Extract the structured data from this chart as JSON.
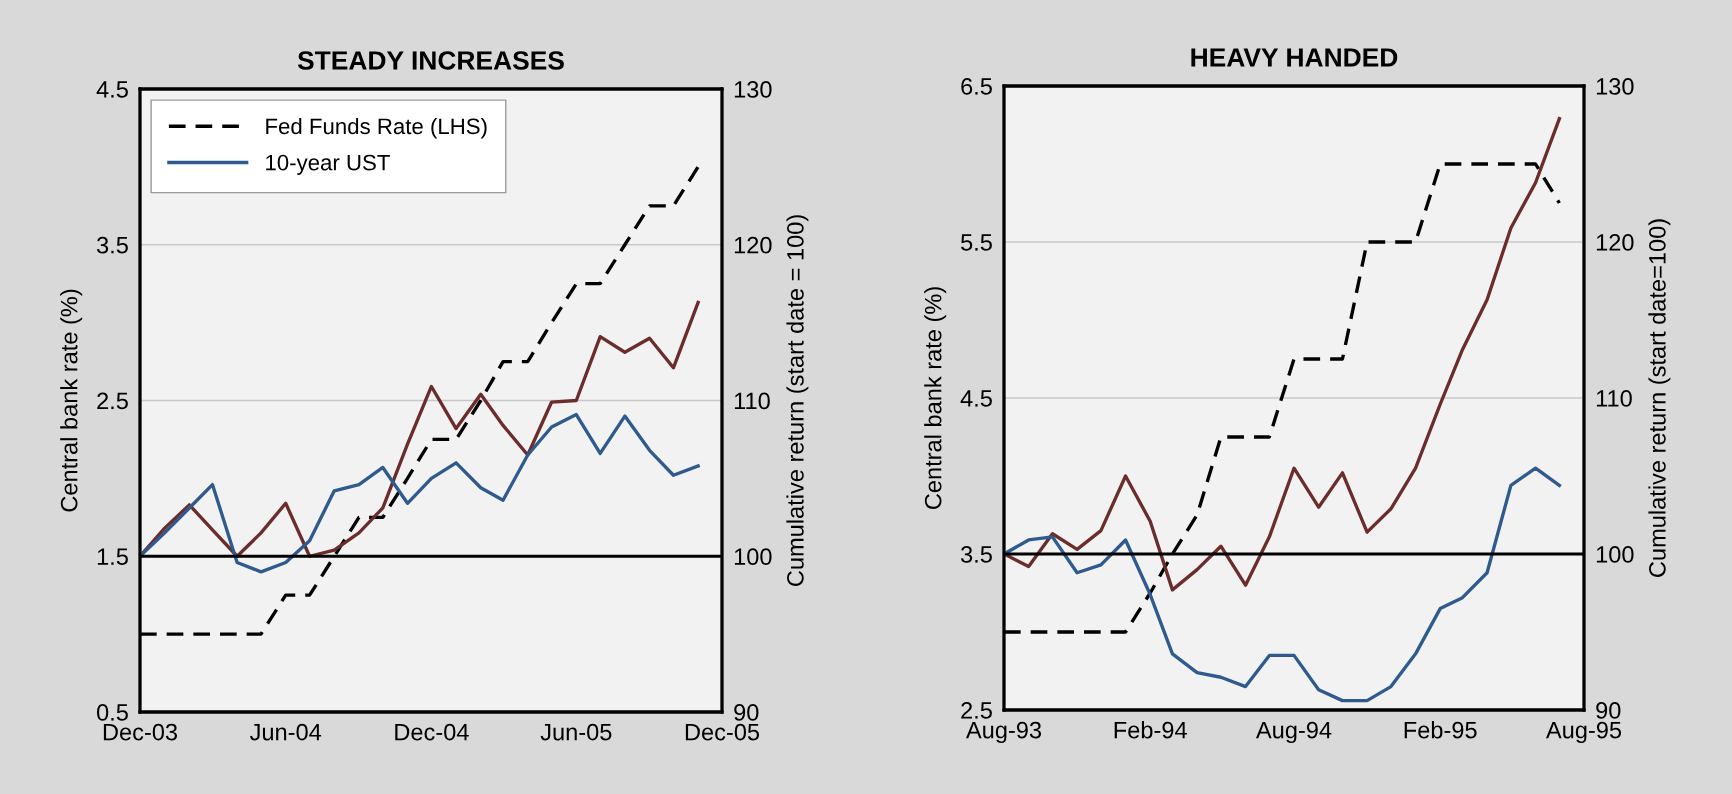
{
  "chart_data": [
    {
      "type": "line",
      "title": "STEADY INCREASES",
      "ylabel": "Central bank rate (%)",
      "y2label": "Cumulative return (start date = 100)",
      "x": [
        "2003-12",
        "2004-01",
        "2004-02",
        "2004-03",
        "2004-04",
        "2004-05",
        "2004-06",
        "2004-07",
        "2004-08",
        "2004-09",
        "2004-10",
        "2004-11",
        "2004-12",
        "2005-01",
        "2005-02",
        "2005-03",
        "2005-04",
        "2005-05",
        "2005-06",
        "2005-07",
        "2005-08",
        "2005-09",
        "2005-10",
        "2005-11"
      ],
      "xlim": [
        "2003-12",
        "2005-12"
      ],
      "xticks": [
        {
          "value": "2003-12",
          "label": "Dec-03"
        },
        {
          "value": "2004-06",
          "label": "Jun-04"
        },
        {
          "value": "2004-12",
          "label": "Dec-04"
        },
        {
          "value": "2005-06",
          "label": "Jun-05"
        },
        {
          "value": "2005-12",
          "label": "Dec-05"
        }
      ],
      "ylim": [
        0.5,
        4.5
      ],
      "yticks": [
        0.5,
        1.5,
        2.5,
        3.5,
        4.5
      ],
      "y2lim": [
        90,
        130
      ],
      "y2ticks": [
        90,
        100,
        110,
        120,
        130
      ],
      "grid": "y",
      "legend": "top left",
      "ref_lines": [
        {
          "axis": "y2",
          "value": 100,
          "color": "#000000"
        }
      ],
      "series": [
        {
          "name": "Fed Funds Rate (LHS)",
          "color": "#000000",
          "line_style": "dashed",
          "values": [
            1.0,
            1.0,
            1.0,
            1.0,
            1.0,
            1.0,
            1.25,
            1.25,
            1.5,
            1.75,
            1.75,
            2.0,
            2.25,
            2.25,
            2.5,
            2.75,
            2.75,
            3.0,
            3.25,
            3.25,
            3.5,
            3.75,
            3.75,
            4.0
          ]
        },
        {
          "color": "#6b2c2c",
          "axis": "y2",
          "values": [
            100,
            101.8,
            103.3,
            101.7,
            100,
            101.5,
            103.4,
            100,
            100.4,
            101.5,
            103.1,
            107.2,
            110.9,
            108.2,
            110.4,
            108.4,
            106.5,
            109.9,
            110.0,
            114.1,
            113.1,
            114.0,
            112.1,
            116.3
          ]
        },
        {
          "name": "10-year UST",
          "color": "#2e5a8e",
          "axis": "y2",
          "values": [
            100,
            101.5,
            103.1,
            104.6,
            99.6,
            99.0,
            99.6,
            101.0,
            104.2,
            104.6,
            105.7,
            103.4,
            105.0,
            106.0,
            104.4,
            103.6,
            106.5,
            108.3,
            109.1,
            106.6,
            109.0,
            106.8,
            105.2,
            105.8
          ]
        }
      ]
    },
    {
      "type": "line",
      "title": "HEAVY HANDED",
      "ylabel": "Central bank rate (%)",
      "y2label": "Cumulative return (start date=100)",
      "x": [
        "1993-08",
        "1993-09",
        "1993-10",
        "1993-11",
        "1993-12",
        "1994-01",
        "1994-02",
        "1994-03",
        "1994-04",
        "1994-05",
        "1994-06",
        "1994-07",
        "1994-08",
        "1994-09",
        "1994-10",
        "1994-11",
        "1994-12",
        "1995-01",
        "1995-02",
        "1995-03",
        "1995-04",
        "1995-05",
        "1995-06",
        "1995-07"
      ],
      "xlim": [
        "1993-08",
        "1995-08"
      ],
      "xticks": [
        {
          "value": "1993-08",
          "label": "Aug-93"
        },
        {
          "value": "1994-02",
          "label": "Feb-94"
        },
        {
          "value": "1994-08",
          "label": "Aug-94"
        },
        {
          "value": "1995-02",
          "label": "Feb-95"
        },
        {
          "value": "1995-08",
          "label": "Aug-95"
        }
      ],
      "ylim": [
        2.5,
        6.5
      ],
      "yticks": [
        2.5,
        3.5,
        4.5,
        5.5,
        6.5
      ],
      "y2lim": [
        90,
        130
      ],
      "y2ticks": [
        90,
        100,
        110,
        120,
        130
      ],
      "grid": "y",
      "ref_lines": [
        {
          "axis": "y2",
          "value": 100,
          "color": "#000000"
        }
      ],
      "series": [
        {
          "color": "#000000",
          "line_style": "dashed",
          "values": [
            3.0,
            3.0,
            3.0,
            3.0,
            3.0,
            3.0,
            3.25,
            3.5,
            3.75,
            4.25,
            4.25,
            4.25,
            4.75,
            4.75,
            4.75,
            5.5,
            5.5,
            5.5,
            6.0,
            6.0,
            6.0,
            6.0,
            6.0,
            5.75
          ]
        },
        {
          "color": "#6b2c2c",
          "axis": "y2",
          "values": [
            100.0,
            99.2,
            101.3,
            100.3,
            101.5,
            105.0,
            102.1,
            97.7,
            99.0,
            100.5,
            98.0,
            101.1,
            105.5,
            103.0,
            105.2,
            101.4,
            102.9,
            105.5,
            109.6,
            113.1,
            116.3,
            120.9,
            123.8,
            127.9
          ]
        },
        {
          "color": "#2e5a8e",
          "axis": "y2",
          "values": [
            100,
            100.9,
            101.1,
            98.8,
            99.3,
            100.9,
            97.4,
            93.6,
            92.4,
            92.1,
            91.5,
            93.5,
            93.5,
            91.3,
            90.6,
            90.6,
            91.5,
            93.6,
            96.5,
            97.2,
            98.8,
            104.4,
            105.5,
            104.4
          ]
        }
      ]
    }
  ]
}
